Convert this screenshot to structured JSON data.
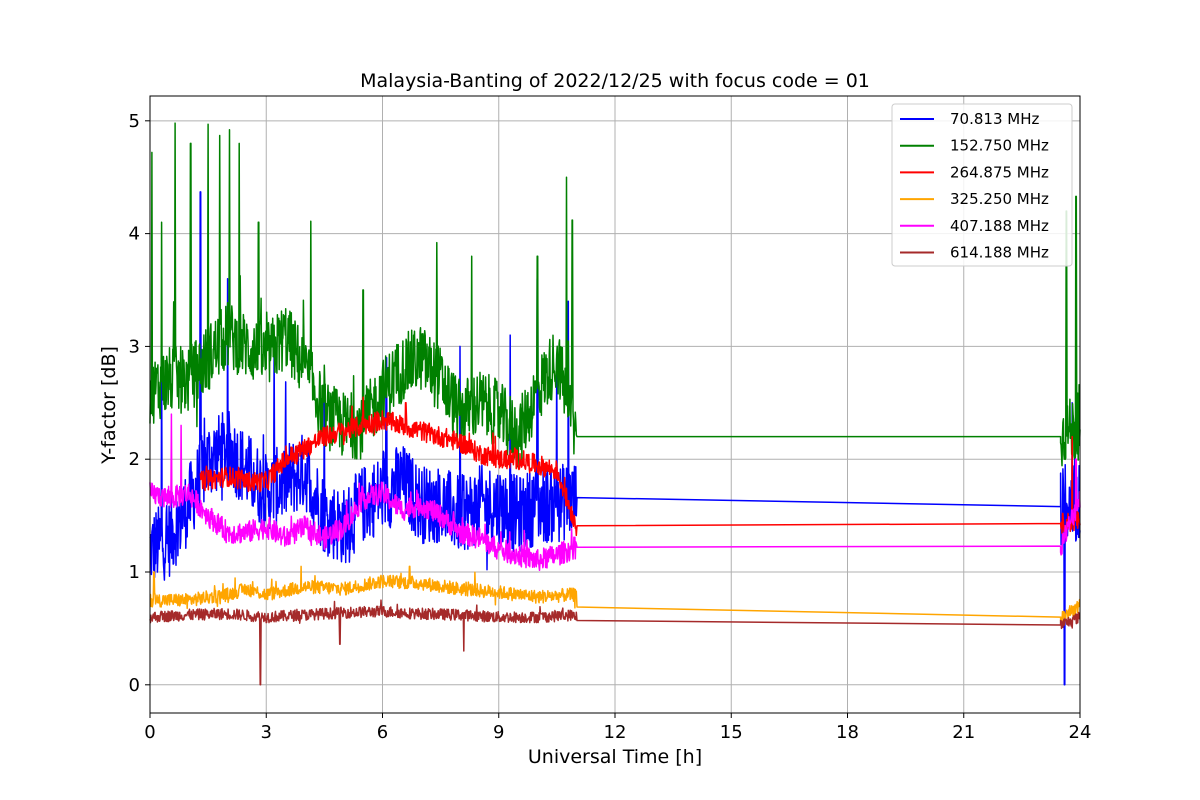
{
  "chart_data": {
    "type": "line",
    "title": "Malaysia-Banting of 2022/12/25 with focus code = 01",
    "xlabel": "Universal Time [h]",
    "ylabel": "Y-factor [dB]",
    "xlim": [
      0,
      24
    ],
    "ylim": [
      -0.25,
      5.22
    ],
    "xticks": [
      0,
      3,
      6,
      9,
      12,
      15,
      18,
      21,
      24
    ],
    "yticks": [
      0,
      1,
      2,
      3,
      4,
      5
    ],
    "grid": true,
    "legend_position": "top-right",
    "series": [
      {
        "name": " 70.813 MHz",
        "color": "#0000ff",
        "base": [
          [
            0,
            1.2
          ],
          [
            0.5,
            1.3
          ],
          [
            1,
            1.6
          ],
          [
            1.5,
            2.0
          ],
          [
            2,
            2.1
          ],
          [
            2.5,
            1.9
          ],
          [
            3,
            1.7
          ],
          [
            3.5,
            1.8
          ],
          [
            4,
            1.9
          ],
          [
            4.5,
            1.5
          ],
          [
            5,
            1.4
          ],
          [
            5.5,
            1.6
          ],
          [
            6,
            1.7
          ],
          [
            6.5,
            1.8
          ],
          [
            7,
            1.6
          ],
          [
            7.5,
            1.6
          ],
          [
            8,
            1.5
          ],
          [
            8.5,
            1.6
          ],
          [
            9,
            1.6
          ],
          [
            9.5,
            1.5
          ],
          [
            10,
            1.6
          ],
          [
            10.5,
            1.6
          ],
          [
            11,
            1.66
          ],
          [
            23.5,
            1.58
          ],
          [
            24,
            1.6
          ]
        ],
        "noise": 0.35,
        "spikes": [
          [
            0.3,
            3.0
          ],
          [
            1.3,
            4.37
          ],
          [
            2.0,
            3.6
          ],
          [
            3.2,
            3.0
          ],
          [
            4.5,
            2.7
          ],
          [
            6.1,
            2.9
          ],
          [
            8.0,
            3.0
          ],
          [
            9.3,
            3.1
          ],
          [
            10.0,
            3.6
          ],
          [
            10.5,
            2.9
          ],
          [
            10.8,
            3.4
          ],
          [
            23.6,
            0.0
          ],
          [
            23.8,
            2.5
          ]
        ]
      },
      {
        "name": "152.750 MHz",
        "color": "#008000",
        "base": [
          [
            0,
            2.6
          ],
          [
            0.5,
            2.7
          ],
          [
            1,
            2.7
          ],
          [
            1.5,
            2.9
          ],
          [
            2,
            3.1
          ],
          [
            2.5,
            3.0
          ],
          [
            3,
            2.9
          ],
          [
            3.5,
            3.1
          ],
          [
            4,
            2.8
          ],
          [
            4.5,
            2.4
          ],
          [
            5,
            2.3
          ],
          [
            5.5,
            2.3
          ],
          [
            6,
            2.6
          ],
          [
            6.5,
            2.8
          ],
          [
            7,
            2.9
          ],
          [
            7.5,
            2.7
          ],
          [
            8,
            2.4
          ],
          [
            8.5,
            2.5
          ],
          [
            9,
            2.4
          ],
          [
            9.5,
            2.2
          ],
          [
            10,
            2.6
          ],
          [
            10.5,
            2.9
          ],
          [
            11,
            2.2
          ],
          [
            23.5,
            2.2
          ],
          [
            24,
            2.3
          ]
        ],
        "noise": 0.3,
        "spikes": [
          [
            0.05,
            4.72
          ],
          [
            0.3,
            4.1
          ],
          [
            0.65,
            4.98
          ],
          [
            1.05,
            4.8
          ],
          [
            1.5,
            4.97
          ],
          [
            1.8,
            4.87
          ],
          [
            2.05,
            4.92
          ],
          [
            2.3,
            4.8
          ],
          [
            2.8,
            4.1
          ],
          [
            4.15,
            4.11
          ],
          [
            5.5,
            3.5
          ],
          [
            7.4,
            3.92
          ],
          [
            8.3,
            3.8
          ],
          [
            10.0,
            3.8
          ],
          [
            10.75,
            4.5
          ],
          [
            10.9,
            4.12
          ],
          [
            23.65,
            4.2
          ],
          [
            23.9,
            4.33
          ]
        ]
      },
      {
        "name": "264.875 MHz",
        "color": "#ff0000",
        "base": [
          [
            1.3,
            1.8
          ],
          [
            2,
            1.85
          ],
          [
            2.5,
            1.8
          ],
          [
            3,
            1.8
          ],
          [
            3.5,
            2.0
          ],
          [
            4,
            2.1
          ],
          [
            4.5,
            2.2
          ],
          [
            5,
            2.25
          ],
          [
            5.5,
            2.3
          ],
          [
            6,
            2.35
          ],
          [
            6.5,
            2.3
          ],
          [
            7,
            2.25
          ],
          [
            7.5,
            2.2
          ],
          [
            8,
            2.15
          ],
          [
            8.5,
            2.05
          ],
          [
            9,
            2.0
          ],
          [
            9.5,
            2.0
          ],
          [
            10,
            1.95
          ],
          [
            10.5,
            1.9
          ],
          [
            11,
            1.41
          ],
          [
            23.5,
            1.43
          ],
          [
            24,
            1.45
          ]
        ],
        "noise": 0.09,
        "spikes": [
          [
            5.5,
            2.55
          ],
          [
            6.6,
            2.5
          ],
          [
            23.8,
            2.2
          ]
        ]
      },
      {
        "name": "325.250 MHz",
        "color": "#ffa500",
        "base": [
          [
            0,
            0.75
          ],
          [
            1,
            0.75
          ],
          [
            2,
            0.8
          ],
          [
            2.5,
            0.85
          ],
          [
            3,
            0.8
          ],
          [
            4,
            0.87
          ],
          [
            5,
            0.85
          ],
          [
            6,
            0.92
          ],
          [
            7,
            0.9
          ],
          [
            8,
            0.85
          ],
          [
            9,
            0.82
          ],
          [
            10,
            0.78
          ],
          [
            11,
            0.8
          ],
          [
            11.01,
            0.58
          ],
          [
            23.5,
            0.6
          ],
          [
            24,
            0.7
          ]
        ],
        "noise": 0.06,
        "spikes": [
          [
            0.1,
            1.0
          ],
          [
            3.9,
            1.05
          ],
          [
            6.7,
            1.05
          ]
        ]
      },
      {
        "name": "407.188 MHz",
        "color": "#ff00ff",
        "base": [
          [
            0,
            1.7
          ],
          [
            0.5,
            1.65
          ],
          [
            1,
            1.7
          ],
          [
            1.5,
            1.5
          ],
          [
            2,
            1.35
          ],
          [
            2.5,
            1.35
          ],
          [
            3,
            1.4
          ],
          [
            3.5,
            1.3
          ],
          [
            4,
            1.4
          ],
          [
            4.5,
            1.3
          ],
          [
            5,
            1.4
          ],
          [
            5.5,
            1.65
          ],
          [
            6,
            1.7
          ],
          [
            6.5,
            1.55
          ],
          [
            7,
            1.6
          ],
          [
            7.5,
            1.5
          ],
          [
            8,
            1.35
          ],
          [
            8.5,
            1.3
          ],
          [
            9,
            1.2
          ],
          [
            9.5,
            1.15
          ],
          [
            10,
            1.1
          ],
          [
            10.5,
            1.15
          ],
          [
            11,
            1.22
          ],
          [
            23.5,
            1.23
          ],
          [
            24,
            1.65
          ]
        ],
        "noise": 0.1,
        "spikes": [
          [
            0.55,
            2.4
          ],
          [
            0.8,
            2.3
          ],
          [
            23.9,
            2.0
          ]
        ]
      },
      {
        "name": "614.188 MHz",
        "color": "#a52a2a",
        "base": [
          [
            0,
            0.6
          ],
          [
            1,
            0.62
          ],
          [
            2,
            0.63
          ],
          [
            3,
            0.6
          ],
          [
            4,
            0.62
          ],
          [
            5,
            0.64
          ],
          [
            6,
            0.65
          ],
          [
            7,
            0.63
          ],
          [
            8,
            0.62
          ],
          [
            9,
            0.6
          ],
          [
            10,
            0.6
          ],
          [
            11,
            0.62
          ],
          [
            11.01,
            0.52
          ],
          [
            23.5,
            0.53
          ],
          [
            24,
            0.6
          ]
        ],
        "noise": 0.05,
        "spikes": [
          [
            2.85,
            0.0
          ],
          [
            8.1,
            0.3
          ],
          [
            4.9,
            0.36
          ]
        ]
      }
    ]
  }
}
